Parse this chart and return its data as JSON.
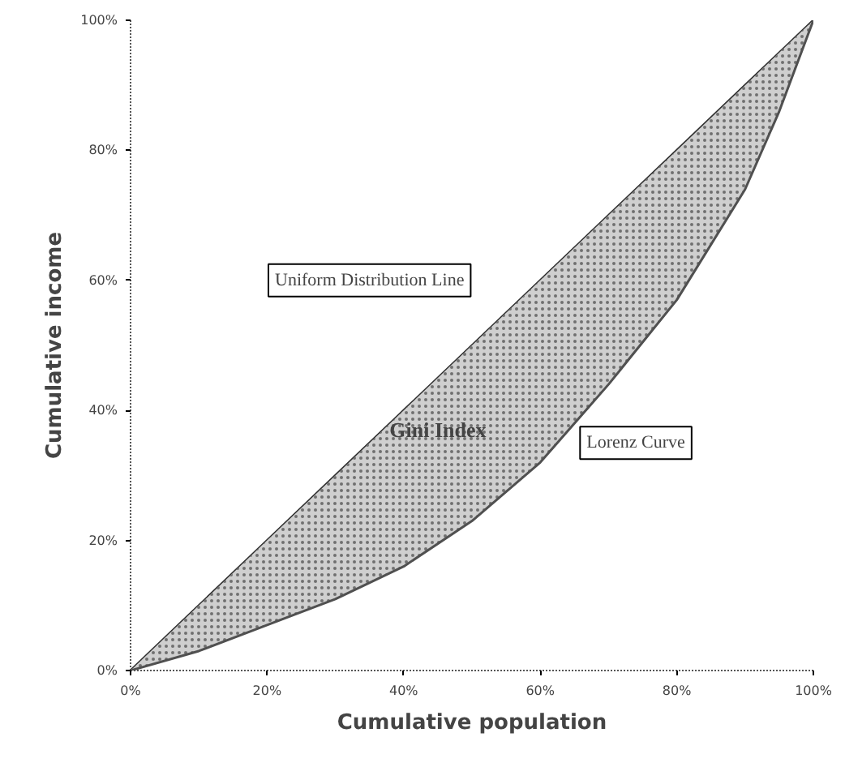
{
  "chart_data": {
    "type": "line",
    "xlabel": "Cumulative population",
    "ylabel": "Cumulative income",
    "x": [
      0,
      10,
      20,
      30,
      40,
      50,
      60,
      70,
      80,
      90,
      95,
      100
    ],
    "series": [
      {
        "name": "Uniform Distribution Line",
        "color": "#303030",
        "values": [
          0,
          10,
          20,
          30,
          40,
          50,
          60,
          70,
          80,
          90,
          95,
          100
        ]
      },
      {
        "name": "Lorenz Curve",
        "color": "#505050",
        "values": [
          0,
          3,
          7,
          11,
          16,
          23,
          32,
          44,
          57,
          74,
          86,
          100
        ],
        "lower": [
          0,
          3,
          7,
          11,
          16,
          23,
          32,
          44,
          57,
          74,
          86,
          100
        ],
        "upper": [
          0,
          10,
          20,
          30,
          40,
          50,
          60,
          70,
          80,
          90,
          95,
          100
        ]
      }
    ],
    "annotations": [
      "Gini Index"
    ],
    "xlim": [
      0,
      100
    ],
    "ylim": [
      0,
      100
    ],
    "xticks": [
      {
        "value": 0,
        "label": "0%"
      },
      {
        "value": 20,
        "label": "20%"
      },
      {
        "value": 40,
        "label": "40%"
      },
      {
        "value": 60,
        "label": "60%"
      },
      {
        "value": 80,
        "label": "80%"
      },
      {
        "value": 100,
        "label": "100%"
      }
    ],
    "yticks": [
      {
        "value": 0,
        "label": "0%"
      },
      {
        "value": 20,
        "label": "20%"
      },
      {
        "value": 40,
        "label": "40%"
      },
      {
        "value": 60,
        "label": "60%"
      },
      {
        "value": 80,
        "label": "80%"
      },
      {
        "value": 100,
        "label": "100%"
      }
    ],
    "grid": false,
    "marker": "none",
    "line_style": "solid"
  }
}
